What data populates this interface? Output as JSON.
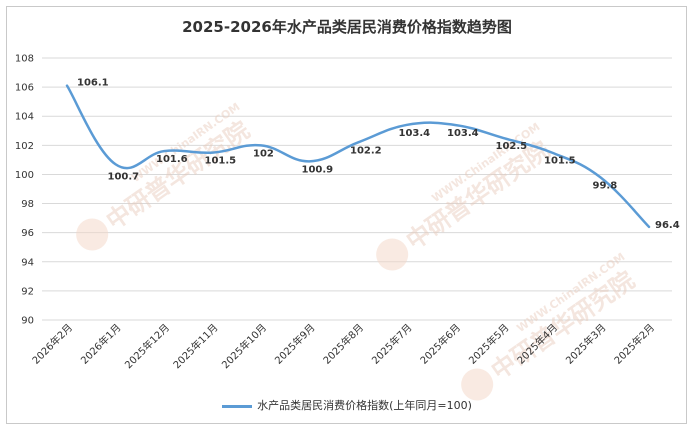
{
  "chart_data": {
    "type": "line",
    "title": "2025-2026年水产品类居民消费价格指数趋势图",
    "categories": [
      "2026年2月",
      "2026年1月",
      "2025年12月",
      "2025年11月",
      "2025年10月",
      "2025年9月",
      "2025年8月",
      "2025年7月",
      "2025年6月",
      "2025年5月",
      "2025年4月",
      "2025年3月",
      "2025年2月"
    ],
    "series": [
      {
        "name": "水产品类居民消费价格指数(上年同月=100)",
        "values": [
          106.1,
          100.7,
          101.6,
          101.5,
          102,
          100.9,
          102.2,
          103.4,
          103.4,
          102.5,
          101.5,
          99.8,
          96.4
        ]
      }
    ],
    "yticks": [
      90,
      92,
      94,
      96,
      98,
      100,
      102,
      104,
      106,
      108
    ],
    "ylim": [
      90,
      108
    ],
    "xlabel": "",
    "ylabel": "",
    "grid": true,
    "legend_position": "bottom",
    "line_color": "#5b9bd5",
    "grid_color": "#d9d9d9"
  },
  "watermark": {
    "text": "中研普华研究院",
    "url": "WWW.ChinaIRN.COM",
    "logo": "CIRN"
  }
}
